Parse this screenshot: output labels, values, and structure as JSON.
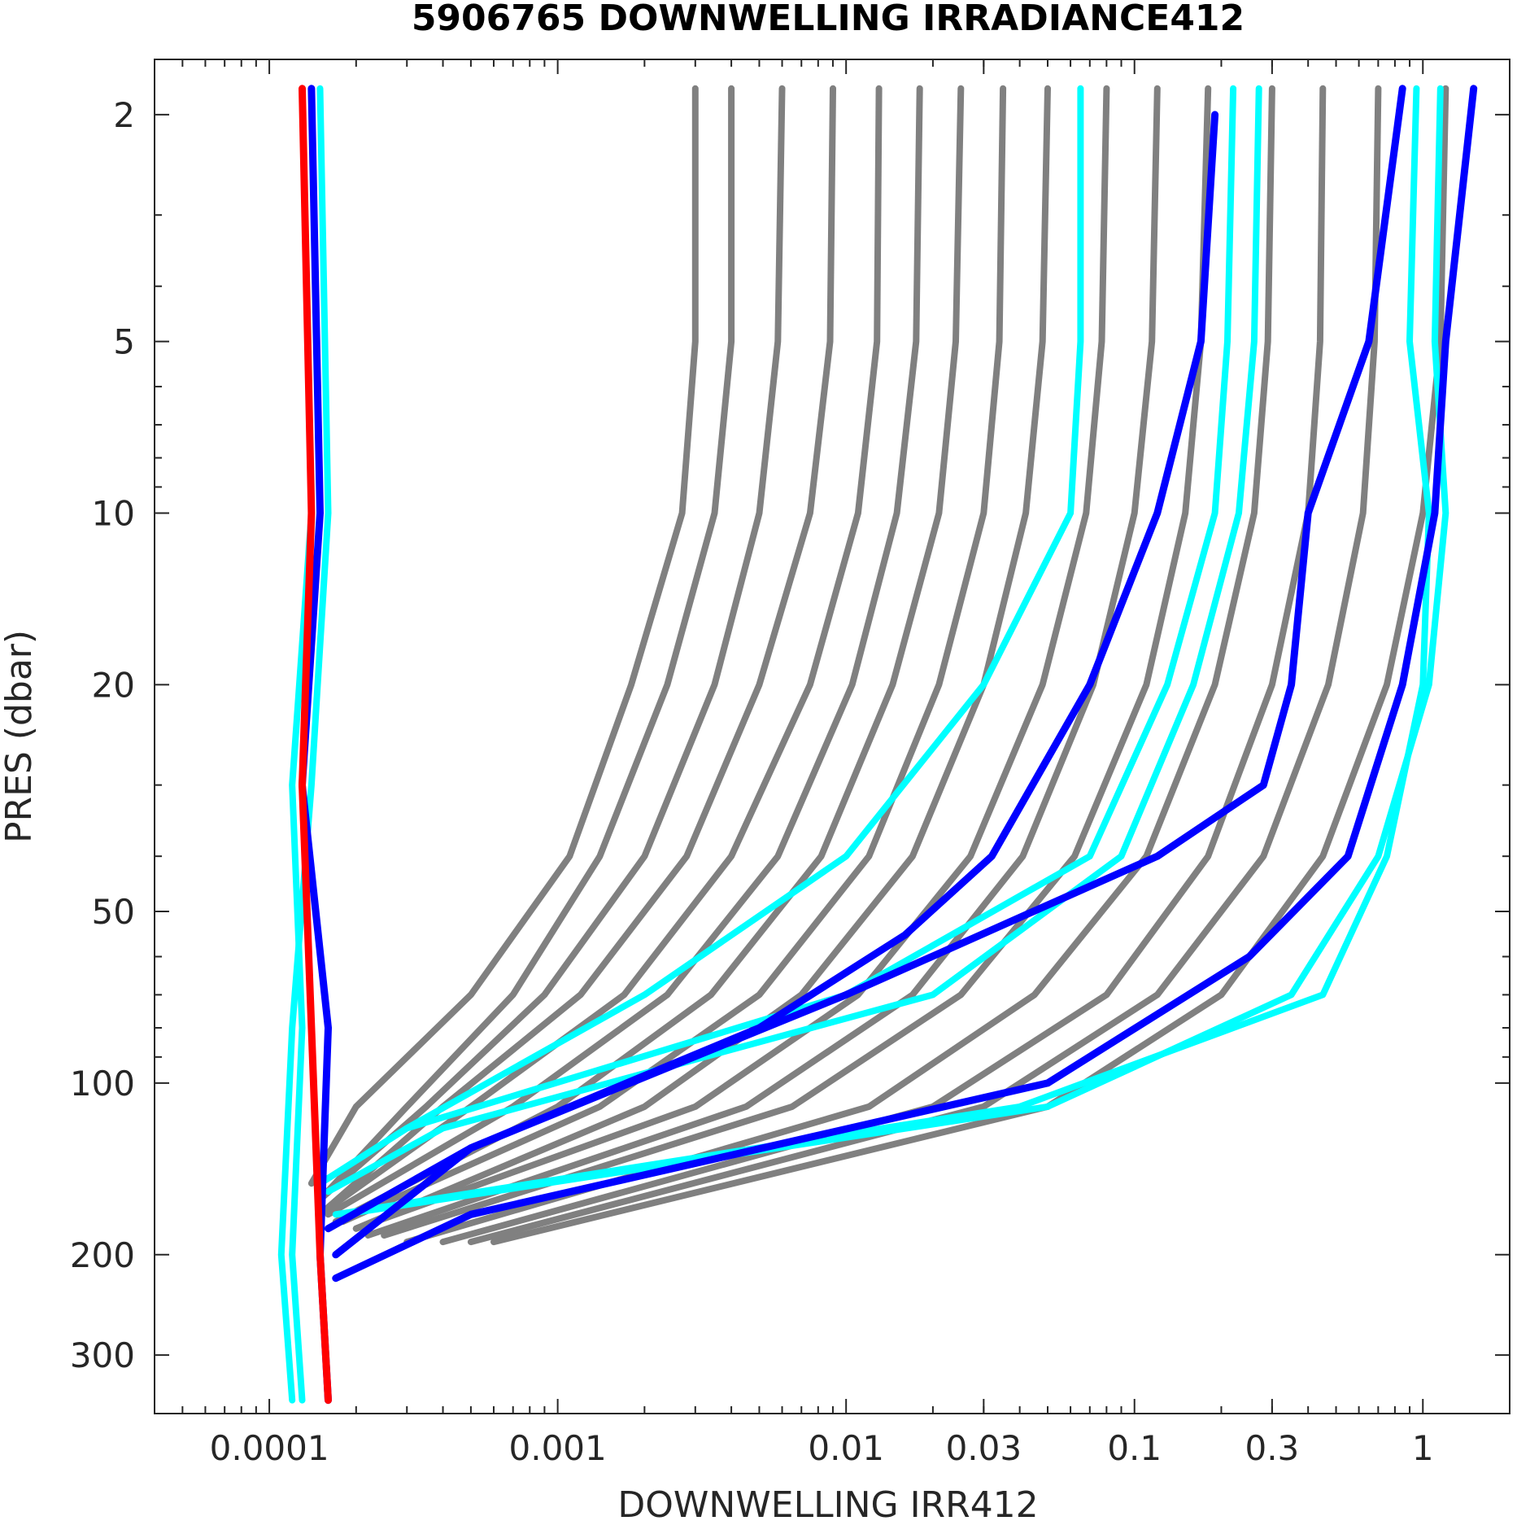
{
  "chart_data": {
    "type": "line",
    "title": "5906765  DOWNWELLING IRRADIANCE412",
    "xlabel": "DOWNWELLING IRR412",
    "ylabel": "PRES (dbar)",
    "x_scale": "log",
    "y_scale": "log",
    "y_reversed": true,
    "xlim": [
      4e-05,
      2.0
    ],
    "ylim": [
      1.6,
      380
    ],
    "x_ticks": [
      0.0001,
      0.001,
      0.01,
      0.03,
      0.1,
      0.3,
      1
    ],
    "x_tick_labels": [
      "0.0001",
      "0.001",
      "0.01",
      "0.03",
      "0.1",
      "0.3",
      "1"
    ],
    "y_ticks": [
      2,
      5,
      10,
      20,
      50,
      100,
      200,
      300
    ],
    "y_tick_labels": [
      "2",
      "5",
      "10",
      "20",
      "50",
      "100",
      "200",
      "300"
    ],
    "grid": false,
    "colors": {
      "history": "#808080",
      "cyan": "#00ffff",
      "blue": "#0000ff",
      "red": "#ff0000"
    },
    "series": [
      {
        "color": "history",
        "x": [
          0.003,
          0.003,
          0.0027,
          0.0018,
          0.0011,
          0.0005,
          0.0002,
          0.00014
        ],
        "y": [
          1.8,
          5,
          10,
          20,
          40,
          70,
          110,
          150
        ]
      },
      {
        "color": "history",
        "x": [
          0.004,
          0.004,
          0.0035,
          0.0024,
          0.0014,
          0.0007,
          0.0003,
          0.00015
        ],
        "y": [
          1.8,
          5,
          10,
          20,
          40,
          70,
          110,
          160
        ]
      },
      {
        "color": "history",
        "x": [
          0.006,
          0.0058,
          0.005,
          0.0035,
          0.002,
          0.0009,
          0.00035,
          0.00015
        ],
        "y": [
          1.8,
          5,
          10,
          20,
          40,
          70,
          110,
          160
        ]
      },
      {
        "color": "history",
        "x": [
          0.009,
          0.0088,
          0.0075,
          0.005,
          0.0028,
          0.0012,
          0.0004,
          0.00015
        ],
        "y": [
          1.8,
          5,
          10,
          20,
          40,
          70,
          110,
          170
        ]
      },
      {
        "color": "history",
        "x": [
          0.013,
          0.0128,
          0.011,
          0.0075,
          0.004,
          0.0017,
          0.0005,
          0.00015
        ],
        "y": [
          1.8,
          5,
          10,
          20,
          40,
          70,
          110,
          170
        ]
      },
      {
        "color": "history",
        "x": [
          0.018,
          0.0175,
          0.015,
          0.0105,
          0.0058,
          0.0024,
          0.0007,
          0.00016
        ],
        "y": [
          1.8,
          5,
          10,
          20,
          40,
          70,
          110,
          170
        ]
      },
      {
        "color": "history",
        "x": [
          0.025,
          0.024,
          0.021,
          0.0145,
          0.0082,
          0.0034,
          0.001,
          0.00017
        ],
        "y": [
          1.8,
          5,
          10,
          20,
          40,
          70,
          110,
          175
        ]
      },
      {
        "color": "history",
        "x": [
          0.035,
          0.034,
          0.03,
          0.021,
          0.012,
          0.005,
          0.0014,
          0.00018
        ],
        "y": [
          1.8,
          5,
          10,
          20,
          40,
          70,
          110,
          175
        ]
      },
      {
        "color": "history",
        "x": [
          0.05,
          0.048,
          0.042,
          0.03,
          0.017,
          0.007,
          0.002,
          0.0002
        ],
        "y": [
          1.8,
          5,
          10,
          20,
          40,
          70,
          110,
          180
        ]
      },
      {
        "color": "history",
        "x": [
          0.08,
          0.077,
          0.068,
          0.048,
          0.027,
          0.011,
          0.003,
          0.0002
        ],
        "y": [
          1.8,
          5,
          10,
          20,
          40,
          70,
          110,
          180
        ]
      },
      {
        "color": "history",
        "x": [
          0.12,
          0.115,
          0.1,
          0.072,
          0.041,
          0.017,
          0.0045,
          0.00022
        ],
        "y": [
          1.8,
          5,
          10,
          20,
          40,
          70,
          110,
          185
        ]
      },
      {
        "color": "history",
        "x": [
          0.18,
          0.17,
          0.15,
          0.11,
          0.062,
          0.025,
          0.0065,
          0.00025
        ],
        "y": [
          1.8,
          5,
          10,
          20,
          40,
          70,
          110,
          185
        ]
      },
      {
        "color": "history",
        "x": [
          0.3,
          0.29,
          0.26,
          0.19,
          0.11,
          0.045,
          0.012,
          0.0003
        ],
        "y": [
          1.8,
          5,
          10,
          20,
          40,
          70,
          110,
          190
        ]
      },
      {
        "color": "history",
        "x": [
          0.45,
          0.44,
          0.4,
          0.3,
          0.18,
          0.08,
          0.02,
          0.0004
        ],
        "y": [
          1.8,
          5,
          10,
          20,
          40,
          70,
          110,
          190
        ]
      },
      {
        "color": "history",
        "x": [
          0.7,
          0.68,
          0.62,
          0.47,
          0.28,
          0.12,
          0.03,
          0.0005
        ],
        "y": [
          1.8,
          5,
          10,
          20,
          40,
          70,
          110,
          190
        ]
      },
      {
        "color": "history",
        "x": [
          1.2,
          1.15,
          1.0,
          0.75,
          0.45,
          0.2,
          0.05,
          0.0006
        ],
        "y": [
          1.8,
          5,
          10,
          20,
          40,
          70,
          110,
          190
        ]
      },
      {
        "color": "cyan",
        "x": [
          0.00013,
          0.00014,
          0.00012,
          0.00013,
          0.00012,
          0.00013
        ],
        "y": [
          1.8,
          10,
          30,
          80,
          200,
          360
        ]
      },
      {
        "color": "cyan",
        "x": [
          0.00015,
          0.00016,
          0.00014,
          0.00012,
          0.00011,
          0.00012
        ],
        "y": [
          1.8,
          10,
          30,
          80,
          200,
          360
        ]
      },
      {
        "color": "cyan",
        "x": [
          0.065,
          0.065,
          0.06,
          0.03,
          0.01,
          0.002,
          0.0003,
          0.00015
        ],
        "y": [
          1.8,
          5,
          10,
          20,
          40,
          70,
          120,
          150
        ]
      },
      {
        "color": "cyan",
        "x": [
          0.22,
          0.21,
          0.19,
          0.13,
          0.07,
          0.01,
          0.0003,
          0.00015
        ],
        "y": [
          1.8,
          5,
          10,
          20,
          40,
          70,
          120,
          150
        ]
      },
      {
        "color": "cyan",
        "x": [
          0.27,
          0.26,
          0.23,
          0.16,
          0.09,
          0.02,
          0.0004,
          0.00016
        ],
        "y": [
          1.8,
          5,
          10,
          20,
          40,
          70,
          120,
          155
        ]
      },
      {
        "color": "cyan",
        "x": [
          0.95,
          0.9,
          1.05,
          1.0,
          0.75,
          0.45,
          0.04,
          0.00017
        ],
        "y": [
          1.8,
          5,
          10,
          20,
          40,
          70,
          110,
          170
        ]
      },
      {
        "color": "cyan",
        "x": [
          1.15,
          1.1,
          1.2,
          1.05,
          0.7,
          0.35,
          0.05,
          0.00018
        ],
        "y": [
          1.8,
          5,
          10,
          20,
          40,
          70,
          110,
          170
        ]
      },
      {
        "color": "blue",
        "x": [
          0.00014,
          0.00015,
          0.00013,
          0.00016,
          0.00015,
          0.00016
        ],
        "y": [
          1.8,
          10,
          30,
          80,
          200,
          360
        ]
      },
      {
        "color": "blue",
        "x": [
          0.19,
          0.17,
          0.12,
          0.07,
          0.032,
          0.016,
          0.005,
          0.0005,
          0.00016
        ],
        "y": [
          2,
          5,
          10,
          20,
          40,
          55,
          80,
          130,
          180
        ]
      },
      {
        "color": "blue",
        "x": [
          0.85,
          0.65,
          0.4,
          0.35,
          0.28,
          0.12,
          0.01,
          0.0005,
          0.00017
        ],
        "y": [
          1.8,
          5,
          10,
          20,
          30,
          40,
          70,
          130,
          200
        ]
      },
      {
        "color": "blue",
        "x": [
          1.5,
          1.2,
          1.1,
          0.85,
          0.55,
          0.25,
          0.05,
          0.0005,
          0.00017
        ],
        "y": [
          1.8,
          5,
          10,
          20,
          40,
          60,
          100,
          170,
          220
        ]
      },
      {
        "color": "red",
        "x": [
          0.00013,
          0.00014,
          0.00013,
          0.00014,
          0.00015,
          0.00016
        ],
        "y": [
          1.8,
          10,
          30,
          80,
          200,
          360
        ]
      }
    ]
  }
}
